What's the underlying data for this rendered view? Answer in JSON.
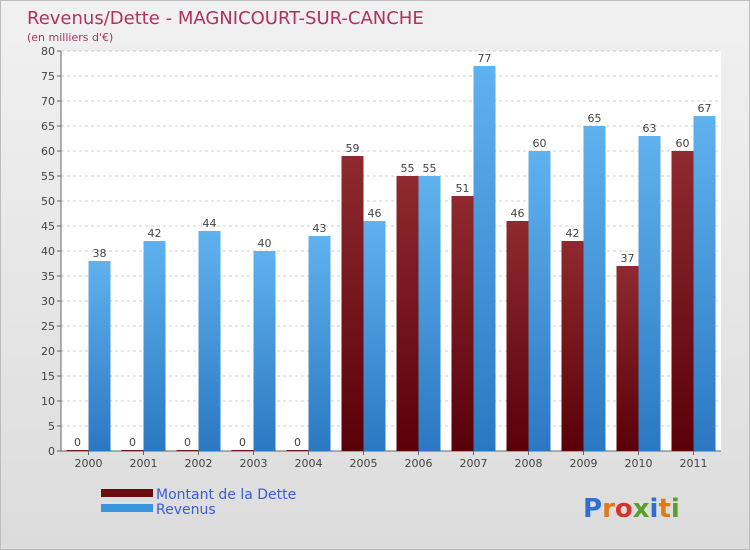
{
  "chart_data": {
    "type": "bar",
    "title": "Revenus/Dette - MAGNICOURT-SUR-CANCHE",
    "subtitle": "(en milliers d'€)",
    "categories": [
      "2000",
      "2001",
      "2002",
      "2003",
      "2004",
      "2005",
      "2006",
      "2007",
      "2008",
      "2009",
      "2010",
      "2011"
    ],
    "series": [
      {
        "name": "Montant de la Dette",
        "color": "#6b0e12",
        "values": [
          0,
          0,
          0,
          0,
          0,
          59,
          55,
          51,
          46,
          42,
          37,
          60
        ]
      },
      {
        "name": "Revenus",
        "color": "#3a95df",
        "values": [
          38,
          42,
          44,
          40,
          43,
          46,
          55,
          77,
          60,
          65,
          63,
          67
        ]
      }
    ],
    "ylim": [
      0,
      80
    ],
    "yticks": [
      0,
      5,
      10,
      15,
      20,
      25,
      30,
      35,
      40,
      45,
      50,
      55,
      60,
      65,
      70,
      75,
      80
    ],
    "grid": true,
    "legend": "bottom-left"
  },
  "logo": {
    "letters": [
      "P",
      "r",
      "o",
      "x",
      "i",
      "t",
      "i"
    ],
    "colors": [
      "#2f6fd0",
      "#e07b16",
      "#d8332b",
      "#5c9e2e",
      "#2f6fd0",
      "#e07b16",
      "#5c9e2e"
    ]
  }
}
